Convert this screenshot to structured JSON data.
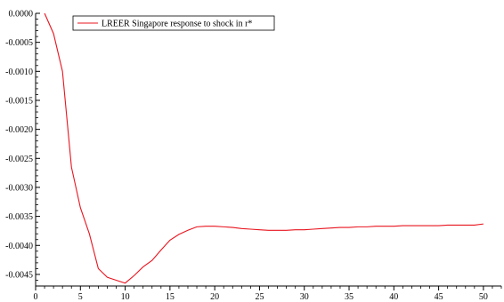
{
  "chart_data": {
    "type": "line",
    "title": "",
    "xlabel": "",
    "ylabel": "",
    "xlim": [
      0,
      52
    ],
    "ylim": [
      -0.0047,
      0.0
    ],
    "x_ticks": [
      0,
      5,
      10,
      15,
      20,
      25,
      30,
      35,
      40,
      45,
      50
    ],
    "x_tick_labels": [
      "0",
      "5",
      "10",
      "15",
      "20",
      "25",
      "30",
      "35",
      "40",
      "45",
      "50"
    ],
    "y_ticks": [
      0.0,
      -0.0005,
      -0.001,
      -0.0015,
      -0.002,
      -0.0025,
      -0.003,
      -0.0035,
      -0.004,
      -0.0045
    ],
    "y_tick_labels": [
      "0.0000",
      "-0.0005",
      "-0.0010",
      "-0.0015",
      "-0.0020",
      "-0.0025",
      "-0.0030",
      "-0.0035",
      "-0.0040",
      "-0.0045"
    ],
    "grid": false,
    "legend": {
      "placement": "top-left"
    },
    "series": [
      {
        "name": "LREER Singapore response to shock in r*",
        "color": "#e8141e",
        "x": [
          1,
          2,
          3,
          4,
          5,
          6,
          7,
          8,
          9,
          10,
          11,
          12,
          13,
          14,
          15,
          16,
          17,
          18,
          19,
          20,
          21,
          22,
          23,
          24,
          25,
          26,
          27,
          28,
          29,
          30,
          31,
          32,
          33,
          34,
          35,
          36,
          37,
          38,
          39,
          40,
          41,
          42,
          43,
          44,
          45,
          46,
          47,
          48,
          49,
          50
        ],
        "values": [
          0.0,
          -0.00035,
          -0.001,
          -0.00265,
          -0.00335,
          -0.0038,
          -0.0044,
          -0.00455,
          -0.0046,
          -0.00465,
          -0.00452,
          -0.00437,
          -0.00426,
          -0.00408,
          -0.00391,
          -0.00381,
          -0.00374,
          -0.00368,
          -0.00367,
          -0.00367,
          -0.00368,
          -0.00369,
          -0.00371,
          -0.00372,
          -0.00373,
          -0.00374,
          -0.00374,
          -0.00374,
          -0.00373,
          -0.00373,
          -0.00372,
          -0.00371,
          -0.0037,
          -0.00369,
          -0.00369,
          -0.00368,
          -0.00368,
          -0.00367,
          -0.00367,
          -0.00367,
          -0.00366,
          -0.00366,
          -0.00366,
          -0.00366,
          -0.00366,
          -0.00365,
          -0.00365,
          -0.00365,
          -0.00365,
          -0.00363
        ]
      }
    ]
  }
}
